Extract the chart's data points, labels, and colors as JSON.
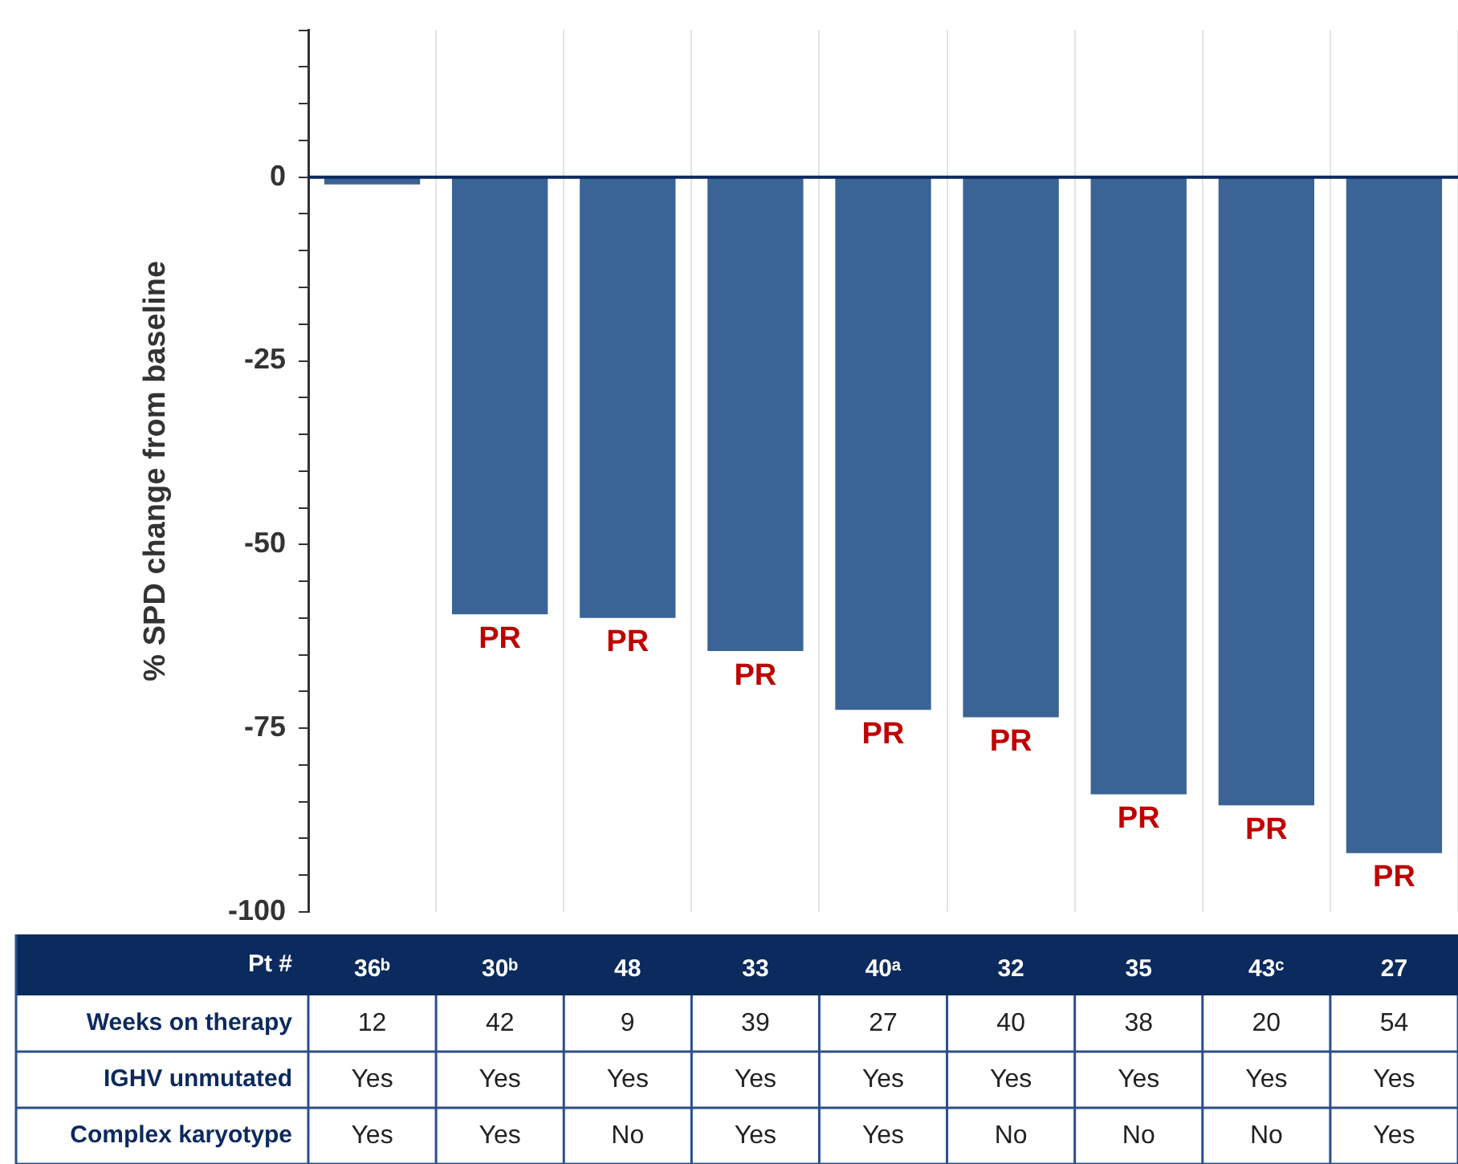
{
  "chart_data": {
    "type": "bar",
    "ylabel": "% SPD change from baseline",
    "xlabel": "Pt #",
    "categories": [
      "36ᵇ",
      "30ᵇ",
      "48",
      "33",
      "40ᵃ",
      "32",
      "35",
      "43ᶜ",
      "27"
    ],
    "values": [
      -1,
      -59.5,
      -60,
      -64.5,
      -72.5,
      -73.5,
      -84,
      -85.5,
      -92
    ],
    "value_labels": [
      null,
      "PR",
      "PR",
      "PR",
      "PR",
      "PR",
      "PR",
      "PR",
      "PR"
    ],
    "color": "#3a6496",
    "ylim": [
      -100,
      20
    ],
    "yticks": [
      -100,
      {
        "value": -95,
        "label": null
      },
      {
        "value": -90,
        "label": null
      },
      {
        "value": -85,
        "label": null
      },
      {
        "value": -80,
        "label": null
      },
      -75,
      {
        "value": -70,
        "label": null
      },
      {
        "value": -65,
        "label": null
      },
      {
        "value": -60,
        "label": null
      },
      {
        "value": -55,
        "label": null
      },
      -50,
      {
        "value": -45,
        "label": null
      },
      {
        "value": -40,
        "label": null
      },
      {
        "value": -35,
        "label": null
      },
      {
        "value": -30,
        "label": null
      },
      -25,
      {
        "value": -20,
        "label": null
      },
      {
        "value": -15,
        "label": null
      },
      {
        "value": -10,
        "label": null
      },
      {
        "value": -5,
        "label": null
      },
      0,
      {
        "value": 5,
        "label": null
      },
      {
        "value": 10,
        "label": null
      },
      {
        "value": 15,
        "label": null
      },
      {
        "value": 20,
        "label": null
      }
    ],
    "grid": "x",
    "legend": false,
    "annotations": [
      "Weeks on therapy",
      "12",
      "42",
      "9",
      "39",
      "27",
      "40",
      "38",
      "20",
      "54",
      "IGHV unmutated",
      "Yes",
      "Yes",
      "Yes",
      "Yes",
      "Yes",
      "Yes",
      "Yes",
      "Yes",
      "Yes",
      "Complex karyotype",
      "Yes",
      "Yes",
      "No",
      "Yes",
      "Yes",
      "No",
      "No",
      "No",
      "Yes"
    ]
  }
}
